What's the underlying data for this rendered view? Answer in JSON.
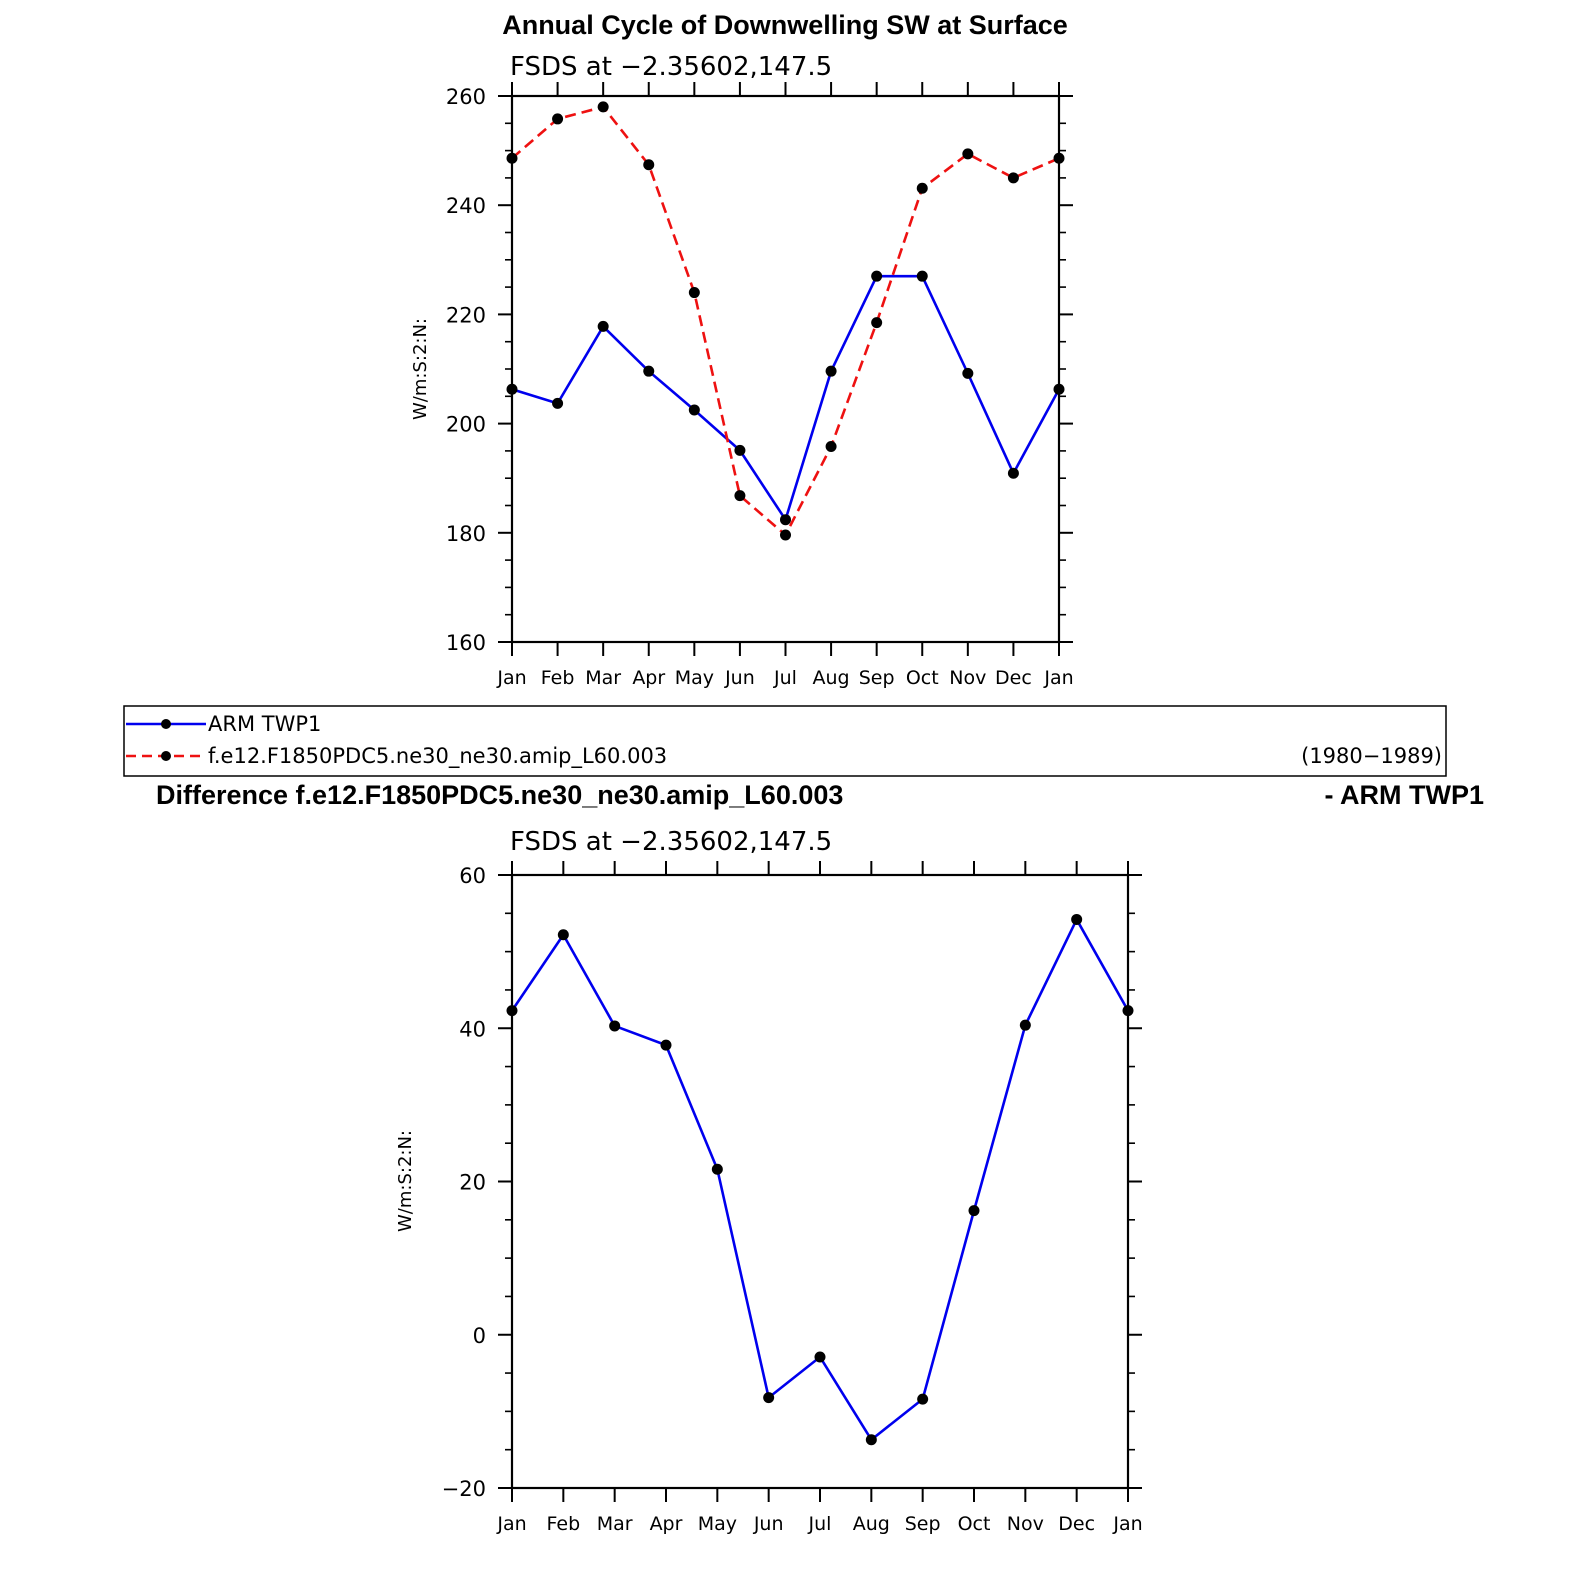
{
  "chart_data": [
    {
      "type": "line",
      "title": "Annual Cycle of Downwelling SW at Surface",
      "subtitle": "FSDS at −2.35602,147.5",
      "ylabel": "W/m:S:2:N:",
      "ylim": [
        160,
        260
      ],
      "yticks": [
        "160",
        "180",
        "200",
        "220",
        "240",
        "260"
      ],
      "ytick_values": [
        160,
        180,
        200,
        220,
        240,
        260
      ],
      "categories": [
        "Jan",
        "Feb",
        "Mar",
        "Apr",
        "May",
        "Jun",
        "Jul",
        "Aug",
        "Sep",
        "Oct",
        "Nov",
        "Dec",
        "Jan"
      ],
      "series": [
        {
          "name": "ARM TWP1",
          "color": "#0000ee",
          "style": "solid",
          "values": [
            206.3,
            203.7,
            217.8,
            209.6,
            202.5,
            195.1,
            182.4,
            209.6,
            227.0,
            227.0,
            209.2,
            190.9,
            206.3
          ]
        },
        {
          "name": "f.e12.F1850PDC5.ne30_ne30.amip_L60.003",
          "color": "#ee1111",
          "style": "dashed",
          "values": [
            248.6,
            255.8,
            258.0,
            247.4,
            224.0,
            186.8,
            179.6,
            195.8,
            218.5,
            243.1,
            249.4,
            245.0,
            248.6
          ]
        }
      ]
    },
    {
      "type": "line",
      "title": "Difference f.e12.F1850PDC5.ne30_ne30.amip_L60.003",
      "title_right": "- ARM TWP1",
      "subtitle": "FSDS at −2.35602,147.5",
      "ylabel": "W/m:S:2:N:",
      "ylim": [
        -20,
        60
      ],
      "yticks": [
        "−20",
        "0",
        "20",
        "40",
        "60"
      ],
      "ytick_values": [
        -20,
        0,
        20,
        40,
        60
      ],
      "categories": [
        "Jan",
        "Feb",
        "Mar",
        "Apr",
        "May",
        "Jun",
        "Jul",
        "Aug",
        "Sep",
        "Oct",
        "Nov",
        "Dec",
        "Jan"
      ],
      "series": [
        {
          "color": "#0000ee",
          "style": "solid",
          "values": [
            42.3,
            52.2,
            40.3,
            37.8,
            21.6,
            -8.2,
            -2.9,
            -13.7,
            -8.4,
            16.2,
            40.4,
            54.2,
            42.3
          ]
        }
      ]
    }
  ],
  "legend": {
    "period": "(1980−1989)"
  }
}
